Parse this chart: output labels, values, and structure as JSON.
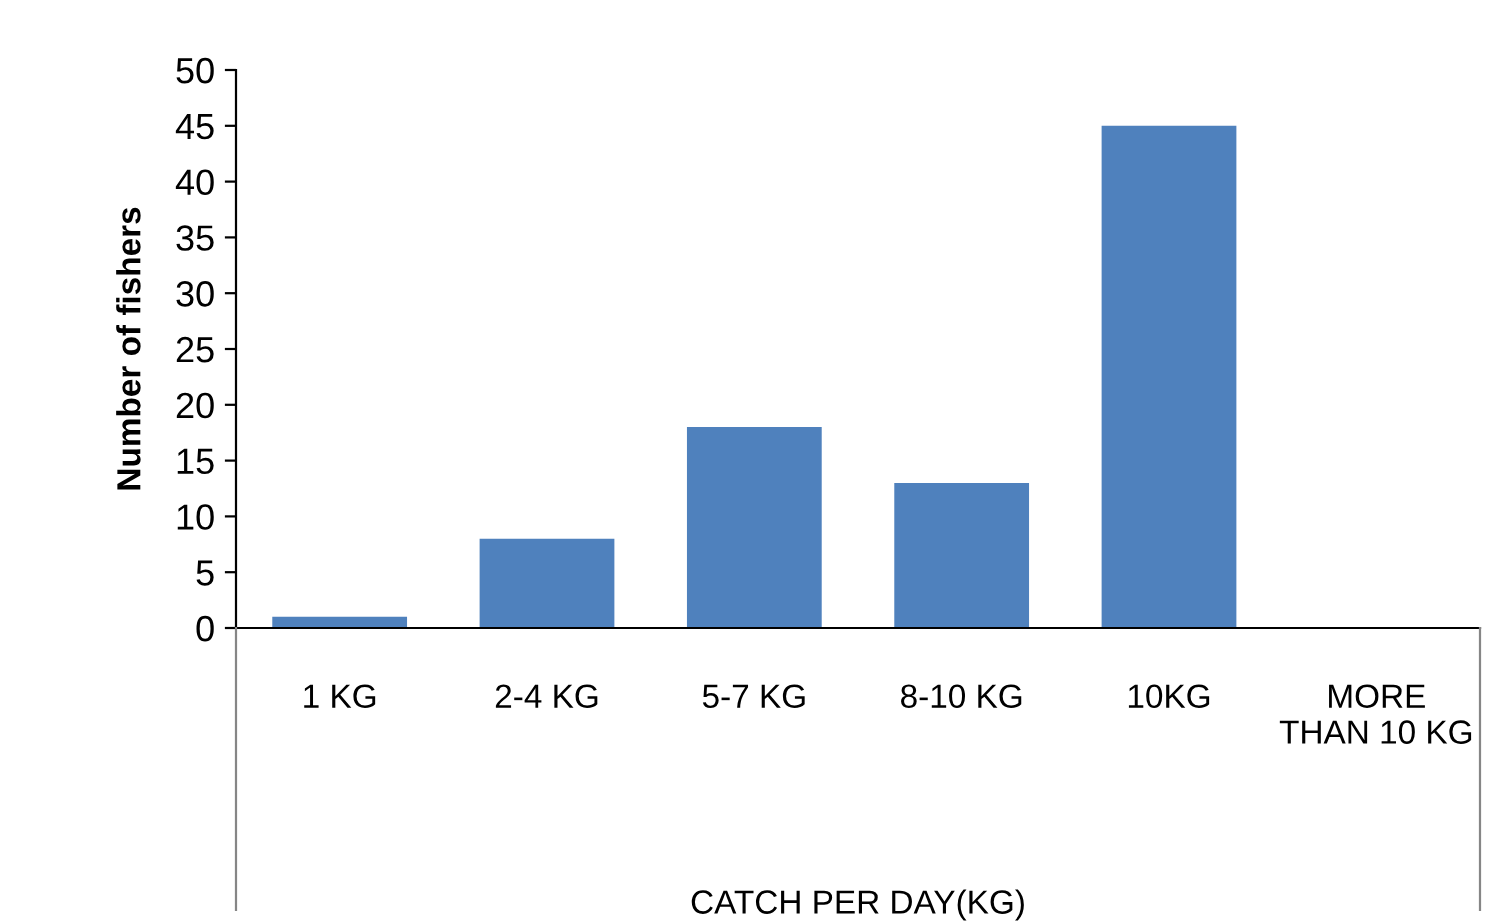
{
  "chart_data": {
    "type": "bar",
    "xlabel": "CATCH PER DAY(KG)",
    "ylabel": "Number of fishers",
    "categories": [
      "1 KG",
      "2-4 KG",
      "5-7 KG",
      "8-10 KG",
      "10KG",
      "MORE\nTHAN 10 KG"
    ],
    "values": [
      1,
      8,
      18,
      13,
      45,
      0
    ],
    "color": "#4f81bd",
    "ylim": [
      0,
      50
    ],
    "yticks": [
      0,
      5,
      10,
      15,
      20,
      25,
      30,
      35,
      40,
      45,
      50
    ],
    "grid": false,
    "legend": false
  }
}
